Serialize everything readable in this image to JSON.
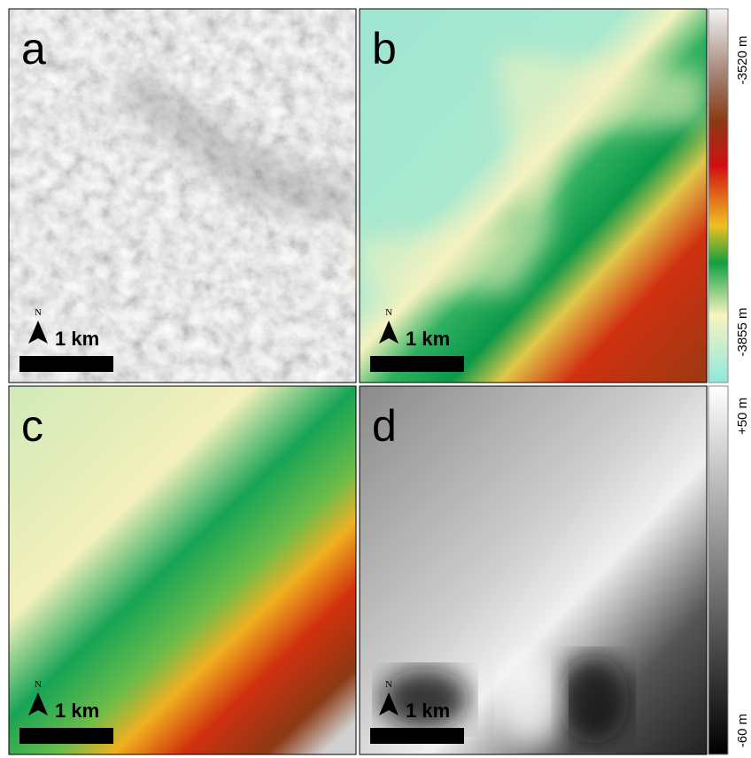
{
  "panels": [
    {
      "letter": "a",
      "north": "N",
      "scale": "1 km"
    },
    {
      "letter": "b",
      "north": "N",
      "scale": "1 km"
    },
    {
      "letter": "c",
      "north": "N",
      "scale": "1 km"
    },
    {
      "letter": "d",
      "north": "N",
      "scale": "1 km"
    }
  ],
  "colorbars": [
    {
      "top": "-3520 m",
      "bottom": "-3855 m"
    },
    {
      "top": "+50 m",
      "bottom": "-60 m"
    }
  ]
}
